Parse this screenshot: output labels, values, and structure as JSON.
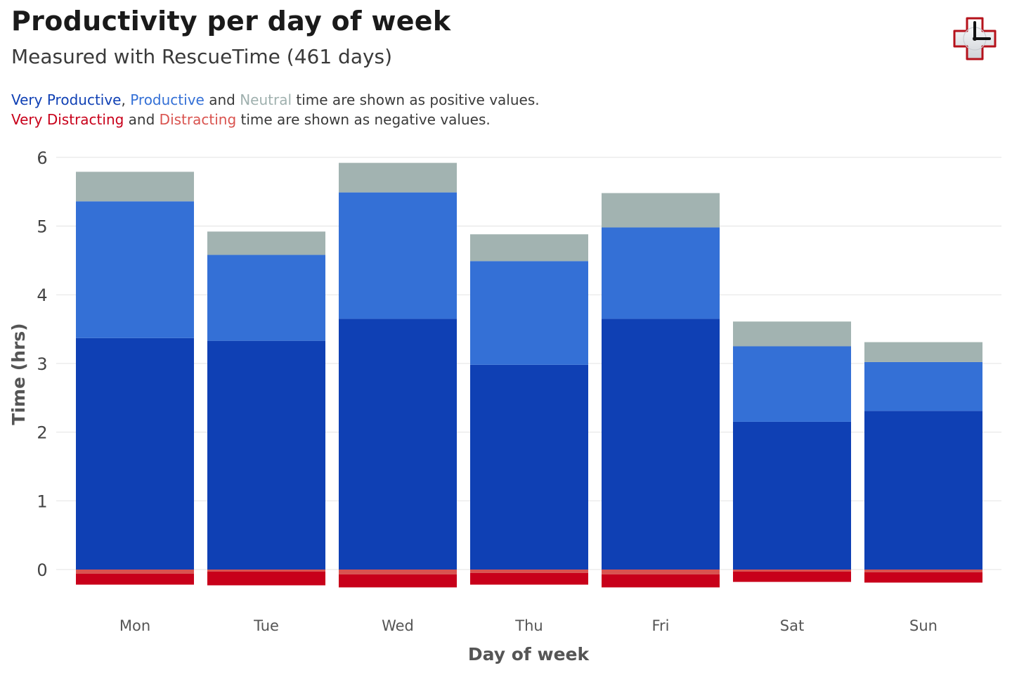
{
  "title": "Productivity per day of week",
  "subtitle": "Measured with RescueTime (461 days)",
  "legend_text": {
    "very_productive": "Very Productive",
    "comma": ",",
    "productive": "Productive",
    "and_1": "and",
    "neutral": "Neutral",
    "positive_suffix": "time are shown as positive values.",
    "very_distracting": "Very Distracting",
    "and_2": "and",
    "distracting": "Distracting",
    "negative_suffix": "time are shown as negative values."
  },
  "logo_icon": "rescuetime-clock-cross-icon",
  "colors": {
    "very_productive": "#0f40b4",
    "productive": "#3470d6",
    "neutral": "#a2b3b1",
    "very_distracting": "#c8001a",
    "distracting": "#d9534f",
    "gridline": "#e3e3e3"
  },
  "chart_data": {
    "type": "bar",
    "stacked": true,
    "categories": [
      "Mon",
      "Tue",
      "Wed",
      "Thu",
      "Fri",
      "Sat",
      "Sun"
    ],
    "series": [
      {
        "name": "Very Productive",
        "values": [
          3.37,
          3.33,
          3.65,
          2.98,
          3.65,
          2.15,
          2.31
        ]
      },
      {
        "name": "Productive",
        "values": [
          1.99,
          1.25,
          1.84,
          1.51,
          1.33,
          1.1,
          0.71
        ]
      },
      {
        "name": "Neutral",
        "values": [
          0.43,
          0.34,
          0.43,
          0.39,
          0.5,
          0.36,
          0.29
        ]
      },
      {
        "name": "Distracting",
        "values": [
          -0.06,
          -0.03,
          -0.07,
          -0.05,
          -0.07,
          -0.03,
          -0.04
        ]
      },
      {
        "name": "Very Distracting",
        "values": [
          -0.16,
          -0.2,
          -0.19,
          -0.17,
          -0.19,
          -0.15,
          -0.15
        ]
      }
    ],
    "xlabel": "Day of week",
    "ylabel": "Time (hrs)",
    "yticks": [
      "0",
      "1",
      "2",
      "3",
      "4",
      "5",
      "6"
    ],
    "ylim": [
      -0.35,
      6.1
    ],
    "grid": true,
    "legend": "text-above-plot"
  }
}
